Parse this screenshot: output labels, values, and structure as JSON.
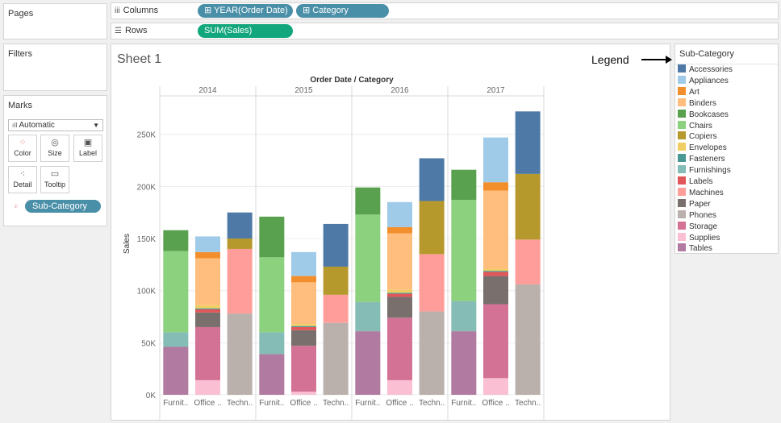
{
  "pages": {
    "title": "Pages"
  },
  "filters": {
    "title": "Filters"
  },
  "marks": {
    "title": "Marks",
    "type": "Automatic",
    "buttons": [
      {
        "id": "color",
        "label": "Color",
        "icon": "color-icon"
      },
      {
        "id": "size",
        "label": "Size",
        "icon": "size-icon"
      },
      {
        "id": "label",
        "label": "Label",
        "icon": "label-icon"
      },
      {
        "id": "detail",
        "label": "Detail",
        "icon": "detail-icon"
      },
      {
        "id": "tooltip",
        "label": "Tooltip",
        "icon": "tooltip-icon"
      }
    ],
    "color_pill": "Sub-Category"
  },
  "columns": {
    "label": "Columns",
    "pills": [
      "YEAR(Order Date)",
      "Category"
    ]
  },
  "rows": {
    "label": "Rows",
    "pills": [
      "SUM(Sales)"
    ]
  },
  "sheet": {
    "title": "Sheet 1"
  },
  "annotation": {
    "legend_label": "Legend"
  },
  "legend": {
    "title": "Sub-Category",
    "items": [
      {
        "name": "Accessories",
        "color": "#4e79a7"
      },
      {
        "name": "Appliances",
        "color": "#a0cbe8"
      },
      {
        "name": "Art",
        "color": "#f28e2b"
      },
      {
        "name": "Binders",
        "color": "#ffbe7d"
      },
      {
        "name": "Bookcases",
        "color": "#59a14f"
      },
      {
        "name": "Chairs",
        "color": "#8cd17d"
      },
      {
        "name": "Copiers",
        "color": "#b6992d"
      },
      {
        "name": "Envelopes",
        "color": "#f1ce63"
      },
      {
        "name": "Fasteners",
        "color": "#499894"
      },
      {
        "name": "Furnishings",
        "color": "#86bcb6"
      },
      {
        "name": "Labels",
        "color": "#e15759"
      },
      {
        "name": "Machines",
        "color": "#ff9d9a"
      },
      {
        "name": "Paper",
        "color": "#79706e"
      },
      {
        "name": "Phones",
        "color": "#bab0ac"
      },
      {
        "name": "Storage",
        "color": "#d37295"
      },
      {
        "name": "Supplies",
        "color": "#fabfd2"
      },
      {
        "name": "Tables",
        "color": "#b07aa1"
      }
    ]
  },
  "chart_data": {
    "type": "bar",
    "stacked": true,
    "column_header": "Order Date / Category",
    "ylabel": "Sales",
    "ylim": [
      0,
      290000
    ],
    "yticks": [
      0,
      50000,
      100000,
      150000,
      200000,
      250000
    ],
    "ytick_labels": [
      "0K",
      "50K",
      "100K",
      "150K",
      "200K",
      "250K"
    ],
    "years": [
      "2014",
      "2015",
      "2016",
      "2017"
    ],
    "category_labels": [
      "Furnit..",
      "Office ..",
      "Techn.."
    ],
    "groups": [
      {
        "year": "2014",
        "category": "Furniture",
        "segments": [
          [
            "Tables",
            46000
          ],
          [
            "Furnishings",
            14000
          ],
          [
            "Chairs",
            78000
          ],
          [
            "Bookcases",
            20000
          ]
        ]
      },
      {
        "year": "2014",
        "category": "Office Supplies",
        "segments": [
          [
            "Supplies",
            14000
          ],
          [
            "Storage",
            51000
          ],
          [
            "Paper",
            14000
          ],
          [
            "Labels",
            3000
          ],
          [
            "Fasteners",
            1000
          ],
          [
            "Envelopes",
            3000
          ],
          [
            "Binders",
            45000
          ],
          [
            "Art",
            6000
          ],
          [
            "Appliances",
            15000
          ]
        ]
      },
      {
        "year": "2014",
        "category": "Technology",
        "segments": [
          [
            "Phones",
            78000
          ],
          [
            "Machines",
            62000
          ],
          [
            "Copiers",
            10000
          ],
          [
            "Accessories",
            25000
          ]
        ]
      },
      {
        "year": "2015",
        "category": "Furniture",
        "segments": [
          [
            "Tables",
            39000
          ],
          [
            "Furnishings",
            21000
          ],
          [
            "Chairs",
            72000
          ],
          [
            "Bookcases",
            39000
          ]
        ]
      },
      {
        "year": "2015",
        "category": "Office Supplies",
        "segments": [
          [
            "Supplies",
            3000
          ],
          [
            "Storage",
            44000
          ],
          [
            "Paper",
            15000
          ],
          [
            "Labels",
            3000
          ],
          [
            "Fasteners",
            1000
          ],
          [
            "Envelopes",
            2000
          ],
          [
            "Binders",
            40000
          ],
          [
            "Art",
            6000
          ],
          [
            "Appliances",
            23000
          ]
        ]
      },
      {
        "year": "2015",
        "category": "Technology",
        "segments": [
          [
            "Phones",
            69000
          ],
          [
            "Machines",
            27000
          ],
          [
            "Copiers",
            27000
          ],
          [
            "Accessories",
            41000
          ]
        ]
      },
      {
        "year": "2016",
        "category": "Furniture",
        "segments": [
          [
            "Tables",
            61000
          ],
          [
            "Furnishings",
            28000
          ],
          [
            "Chairs",
            84000
          ],
          [
            "Bookcases",
            26000
          ]
        ]
      },
      {
        "year": "2016",
        "category": "Office Supplies",
        "segments": [
          [
            "Supplies",
            14000
          ],
          [
            "Storage",
            60000
          ],
          [
            "Paper",
            20000
          ],
          [
            "Labels",
            3000
          ],
          [
            "Fasteners",
            1000
          ],
          [
            "Envelopes",
            3000
          ],
          [
            "Binders",
            54000
          ],
          [
            "Art",
            6000
          ],
          [
            "Appliances",
            24000
          ]
        ]
      },
      {
        "year": "2016",
        "category": "Technology",
        "segments": [
          [
            "Phones",
            80000
          ],
          [
            "Machines",
            55000
          ],
          [
            "Copiers",
            51000
          ],
          [
            "Accessories",
            41000
          ]
        ]
      },
      {
        "year": "2017",
        "category": "Furniture",
        "segments": [
          [
            "Tables",
            61000
          ],
          [
            "Furnishings",
            29000
          ],
          [
            "Chairs",
            97000
          ],
          [
            "Bookcases",
            29000
          ]
        ]
      },
      {
        "year": "2017",
        "category": "Office Supplies",
        "segments": [
          [
            "Supplies",
            16000
          ],
          [
            "Storage",
            71000
          ],
          [
            "Paper",
            27000
          ],
          [
            "Labels",
            4000
          ],
          [
            "Fasteners",
            1000
          ],
          [
            "Envelopes",
            2000
          ],
          [
            "Binders",
            75000
          ],
          [
            "Art",
            8000
          ],
          [
            "Appliances",
            43000
          ]
        ]
      },
      {
        "year": "2017",
        "category": "Technology",
        "segments": [
          [
            "Phones",
            106000
          ],
          [
            "Machines",
            43000
          ],
          [
            "Copiers",
            63000
          ],
          [
            "Accessories",
            60000
          ]
        ]
      }
    ]
  }
}
